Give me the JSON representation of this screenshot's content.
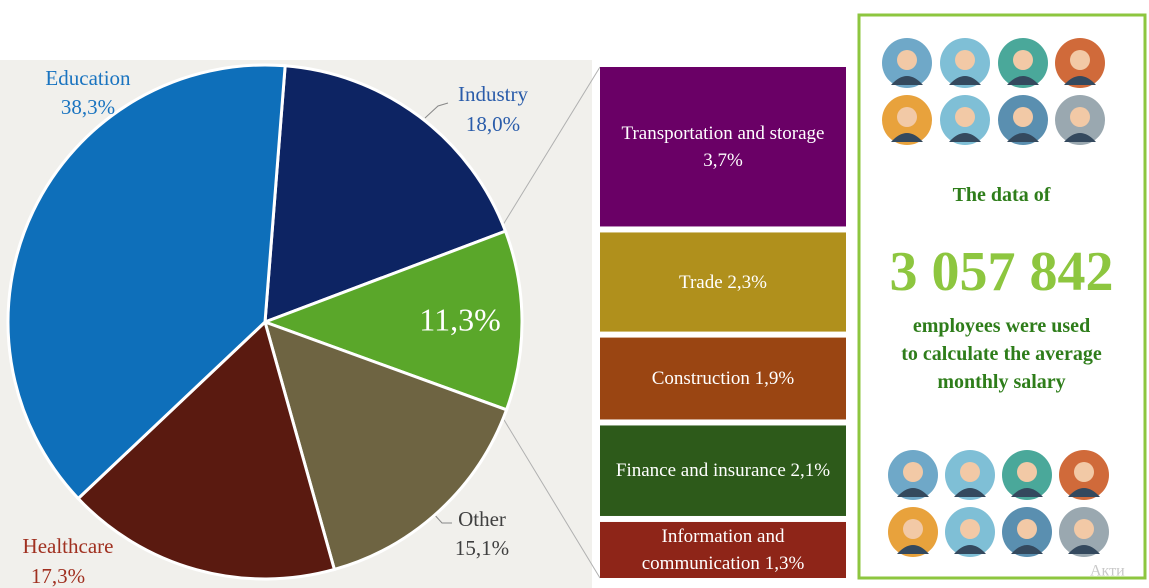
{
  "chart_data": [
    {
      "type": "pie",
      "categories": [
        "Industry",
        null,
        "Other",
        "Healthcare",
        "Education"
      ],
      "values": [
        18.0,
        11.3,
        15.1,
        17.3,
        38.3
      ],
      "value_labels": [
        "18,0%",
        "11,3%",
        "15,1%",
        "17,3%",
        "38,3%"
      ],
      "colors": [
        "#0d2463",
        "#5aa72a",
        "#6e6442",
        "#5a1a10",
        "#0e6fba"
      ]
    },
    {
      "type": "stacked-bar",
      "categories": [
        "Transportation and storage",
        "Trade",
        "Construction",
        "Finance and insurance",
        "Information and communication"
      ],
      "values": [
        3.7,
        2.3,
        1.9,
        2.1,
        1.3
      ],
      "value_labels": [
        "3,7%",
        "2,3%",
        "1,9%",
        "2,1%",
        "1,3%"
      ],
      "colors": [
        "#6a0066",
        "#b0901c",
        "#9a4512",
        "#2d5a1a",
        "#8e2518"
      ]
    }
  ],
  "info": {
    "intro": "The data of",
    "count": "3 057 842",
    "lines": [
      "employees were used",
      "to calculate the average",
      "monthly salary"
    ]
  },
  "watermark": "Акти"
}
